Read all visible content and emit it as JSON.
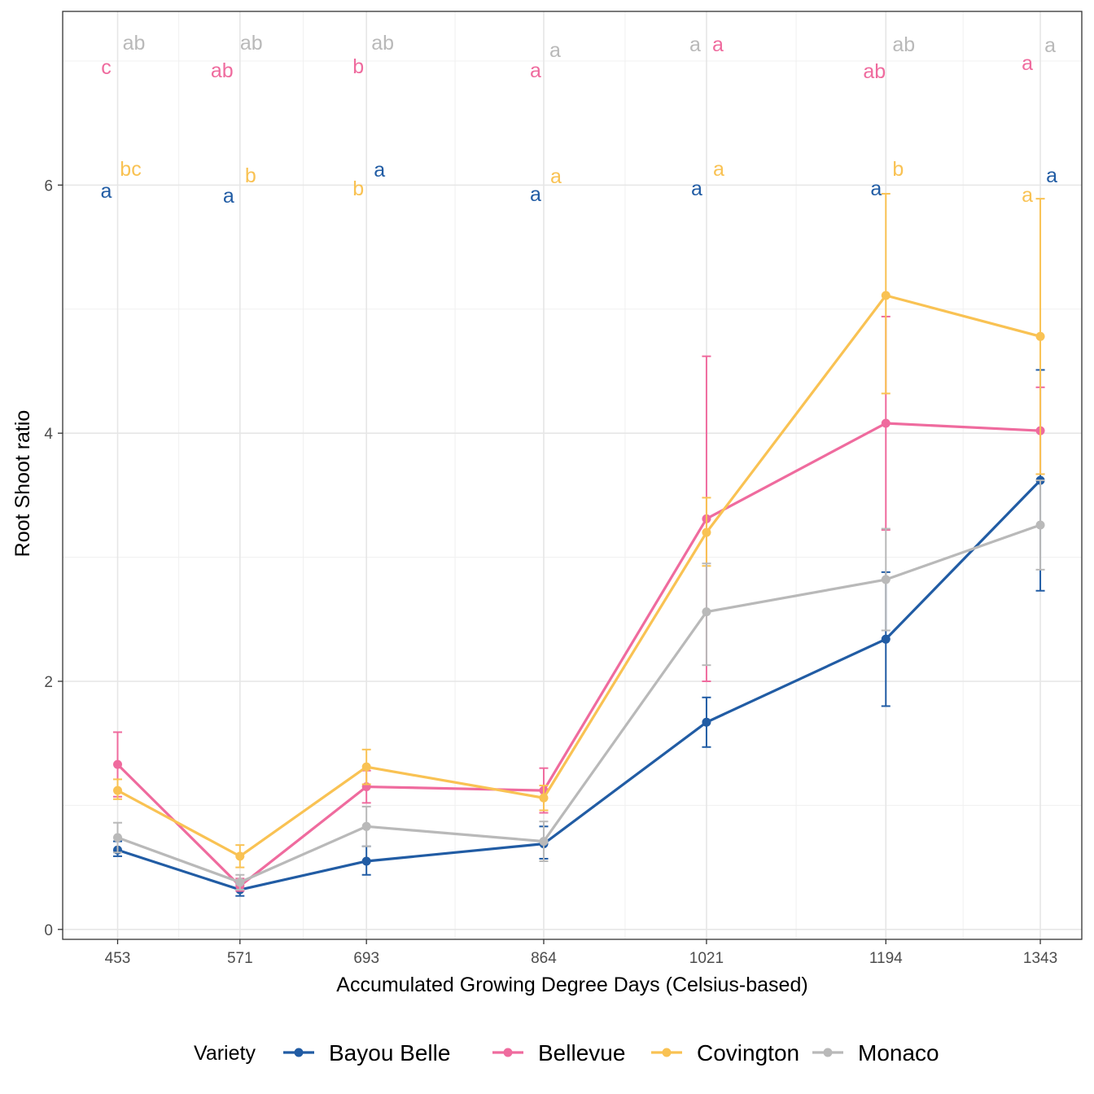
{
  "chart_data": {
    "type": "line",
    "xlabel": "Accumulated Growing Degree Days (Celsius-based)",
    "ylabel": "Root Shoot ratio",
    "x": [
      453,
      571,
      693,
      864,
      1021,
      1194,
      1343
    ],
    "x_tick_labels": [
      "453",
      "571",
      "693",
      "864",
      "1021",
      "1194",
      "1343"
    ],
    "y_ticks": [
      0,
      2,
      4,
      6
    ],
    "y_tick_labels": [
      "0",
      "2",
      "4",
      "6"
    ],
    "ylim": [
      -0.08,
      7.4
    ],
    "grid": true,
    "legend": {
      "title": "Variety",
      "position": "bottom"
    },
    "series": [
      {
        "name": "Bayou Belle",
        "color": "#215ca4",
        "values": [
          0.64,
          0.32,
          0.55,
          0.69,
          1.67,
          2.34,
          3.62
        ],
        "err_low": [
          0.59,
          0.27,
          0.44,
          0.57,
          1.47,
          1.8,
          2.73
        ],
        "err_high": [
          0.71,
          0.37,
          0.67,
          0.83,
          1.87,
          2.88,
          4.51
        ],
        "letters_top": [
          "",
          "",
          "",
          "",
          "",
          "",
          ""
        ],
        "letters_bottom": [
          "a",
          "a",
          "a",
          "a",
          "a",
          "a",
          "a"
        ]
      },
      {
        "name": "Bellevue",
        "color": "#ef6b9e",
        "values": [
          1.33,
          0.35,
          1.15,
          1.12,
          3.31,
          4.08,
          4.02
        ],
        "err_low": [
          1.07,
          0.31,
          1.02,
          0.94,
          2.0,
          3.22,
          3.67
        ],
        "err_high": [
          1.59,
          0.41,
          1.28,
          1.3,
          4.62,
          4.94,
          4.37
        ],
        "letters_top": [
          "c",
          "ab",
          "b",
          "a",
          "a",
          "ab",
          "a"
        ],
        "letters_bottom": [
          "",
          "",
          "",
          "",
          "",
          "",
          ""
        ]
      },
      {
        "name": "Covington",
        "color": "#f9c253",
        "values": [
          1.12,
          0.59,
          1.31,
          1.06,
          3.2,
          5.11,
          4.78
        ],
        "err_low": [
          1.05,
          0.5,
          1.17,
          0.96,
          2.93,
          4.32,
          3.67
        ],
        "err_high": [
          1.21,
          0.68,
          1.45,
          1.16,
          3.48,
          5.93,
          5.89
        ],
        "letters_top": [
          "",
          "",
          "",
          "",
          "",
          "",
          ""
        ],
        "letters_bottom": [
          "bc",
          "b",
          "b",
          "a",
          "a",
          "b",
          "a"
        ]
      },
      {
        "name": "Monaco",
        "color": "#b9b9b9",
        "values": [
          0.74,
          0.38,
          0.83,
          0.71,
          2.56,
          2.82,
          3.26
        ],
        "err_low": [
          0.62,
          0.32,
          0.67,
          0.55,
          2.13,
          2.41,
          2.9
        ],
        "err_high": [
          0.86,
          0.44,
          0.99,
          0.87,
          2.95,
          3.23,
          3.62
        ],
        "letters_top": [
          "ab",
          "ab",
          "ab",
          "a",
          "a",
          "ab",
          "a"
        ],
        "letters_bottom": [
          "",
          "",
          "",
          "",
          "",
          "",
          ""
        ]
      }
    ]
  }
}
